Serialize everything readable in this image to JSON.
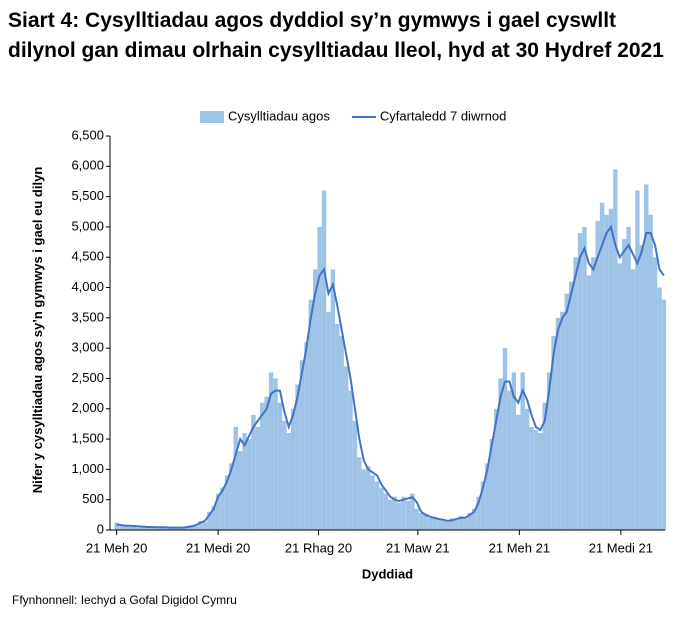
{
  "chart_data": {
    "type": "bar_line",
    "title": "Siart 4: Cysylltiadau agos dyddiol sy’n gymwys i gael cyswllt dilynol gan dimau olrhain cysylltiadau lleol, hyd at 30 Hydref 2021",
    "x_label": "Dyddiad",
    "y_label": "Nifer y cysylltiadau agos sy’n gymwys i gael eu dilyn",
    "source": "Ffynhonnell: Iechyd a Gofal Digidol Cymru",
    "legend": "top",
    "xlim": [
      -6,
      497
    ],
    "xticks": [
      {
        "value": 0,
        "label": "21 Meh 20"
      },
      {
        "value": 92,
        "label": "21 Medi 20"
      },
      {
        "value": 183,
        "label": "21 Rhag 20"
      },
      {
        "value": 273,
        "label": "21 Maw 21"
      },
      {
        "value": 365,
        "label": "21 Meh 21"
      },
      {
        "value": 457,
        "label": "21 Medi 21"
      }
    ],
    "ylim": [
      0,
      6500
    ],
    "yticks": [
      0,
      500,
      {
        "value": 1000,
        "label": "1,000"
      },
      {
        "value": 1500,
        "label": "1,500"
      },
      {
        "value": 2000,
        "label": "2,000"
      },
      {
        "value": 2500,
        "label": "2,500"
      },
      {
        "value": 3000,
        "label": "3,000"
      },
      {
        "value": 3500,
        "label": "3,500"
      },
      {
        "value": 4000,
        "label": "4,000"
      },
      {
        "value": 4500,
        "label": "4,500"
      },
      {
        "value": 5000,
        "label": "5,000"
      },
      {
        "value": 5500,
        "label": "5,500"
      },
      {
        "value": 6000,
        "label": "6,000"
      },
      {
        "value": 6500,
        "label": "6,500"
      }
    ],
    "x": [
      0,
      4,
      8,
      12,
      16,
      20,
      24,
      28,
      32,
      36,
      40,
      44,
      48,
      52,
      56,
      60,
      64,
      68,
      72,
      76,
      80,
      84,
      88,
      92,
      96,
      100,
      104,
      108,
      112,
      116,
      120,
      124,
      128,
      132,
      136,
      140,
      144,
      148,
      152,
      156,
      160,
      164,
      168,
      172,
      176,
      180,
      184,
      188,
      192,
      196,
      200,
      204,
      208,
      212,
      216,
      220,
      224,
      228,
      232,
      236,
      240,
      244,
      248,
      252,
      256,
      260,
      264,
      268,
      272,
      276,
      280,
      284,
      288,
      292,
      296,
      300,
      304,
      308,
      312,
      316,
      320,
      324,
      328,
      332,
      336,
      340,
      344,
      348,
      352,
      356,
      360,
      364,
      368,
      372,
      376,
      380,
      384,
      388,
      392,
      396,
      400,
      404,
      408,
      412,
      416,
      420,
      424,
      428,
      432,
      436,
      440,
      444,
      448,
      452,
      456,
      460,
      464,
      468,
      472,
      476,
      480,
      484,
      488,
      492,
      496
    ],
    "series": [
      {
        "name": "Cysylltiadau agos",
        "kind": "bar",
        "color": "#9dc3e6",
        "values": [
          120,
          60,
          90,
          50,
          80,
          40,
          70,
          40,
          60,
          30,
          50,
          40,
          30,
          50,
          30,
          50,
          40,
          80,
          60,
          150,
          130,
          300,
          400,
          600,
          700,
          900,
          1100,
          1700,
          1300,
          1600,
          1500,
          1900,
          1700,
          2100,
          2200,
          2600,
          2500,
          2100,
          1800,
          1600,
          2000,
          2400,
          2800,
          3100,
          3800,
          4300,
          5000,
          5600,
          3600,
          4300,
          3400,
          3200,
          2700,
          2300,
          1800,
          1200,
          1000,
          1050,
          900,
          800,
          700,
          600,
          500,
          550,
          450,
          550,
          480,
          600,
          350,
          280,
          270,
          200,
          220,
          160,
          180,
          140,
          190,
          170,
          230,
          180,
          280,
          350,
          550,
          800,
          1100,
          1500,
          2000,
          2500,
          3000,
          2300,
          2600,
          1900,
          2600,
          2000,
          1700,
          1650,
          1600,
          2100,
          2600,
          3200,
          3500,
          3600,
          3900,
          4100,
          4500,
          4900,
          5000,
          4200,
          4500,
          5100,
          5400,
          5200,
          5300,
          5950,
          4400,
          4800,
          5000,
          4300,
          5600,
          4700,
          5700,
          5200,
          4500,
          4000,
          3800
        ]
      },
      {
        "name": "Cyfartaledd 7 diwrnod",
        "kind": "line",
        "color": "#4472c4",
        "values": [
          90,
          80,
          70,
          70,
          65,
          60,
          55,
          50,
          50,
          45,
          45,
          45,
          40,
          40,
          40,
          40,
          50,
          60,
          80,
          120,
          150,
          250,
          350,
          550,
          650,
          800,
          1000,
          1250,
          1500,
          1400,
          1550,
          1700,
          1800,
          1900,
          2000,
          2250,
          2300,
          2300,
          1950,
          1700,
          1900,
          2200,
          2600,
          3000,
          3500,
          3900,
          4200,
          4300,
          3900,
          4050,
          3700,
          3300,
          2900,
          2500,
          2000,
          1500,
          1150,
          1000,
          950,
          900,
          750,
          650,
          550,
          500,
          480,
          500,
          520,
          540,
          460,
          300,
          250,
          220,
          200,
          180,
          170,
          150,
          160,
          180,
          200,
          200,
          250,
          300,
          450,
          700,
          1000,
          1400,
          1800,
          2200,
          2450,
          2450,
          2200,
          2100,
          2300,
          2150,
          1900,
          1700,
          1650,
          1800,
          2300,
          2900,
          3300,
          3500,
          3600,
          3900,
          4200,
          4500,
          4650,
          4400,
          4300,
          4500,
          4700,
          4900,
          5000,
          4700,
          4500,
          4600,
          4700,
          4550,
          4400,
          4600,
          4900,
          4900,
          4700,
          4300,
          4200
        ]
      }
    ]
  }
}
